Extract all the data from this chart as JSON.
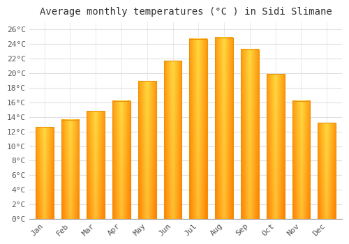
{
  "title": "Average monthly temperatures (°C ) in Sidi Slimane",
  "months": [
    "Jan",
    "Feb",
    "Mar",
    "Apr",
    "May",
    "Jun",
    "Jul",
    "Aug",
    "Sep",
    "Oct",
    "Nov",
    "Dec"
  ],
  "temperatures": [
    12.6,
    13.6,
    14.8,
    16.2,
    18.9,
    21.7,
    24.7,
    24.9,
    23.3,
    19.9,
    16.2,
    13.2
  ],
  "bar_color_center": "#FFD966",
  "bar_color_edge": "#E8920A",
  "bar_color_side": "#F5A623",
  "ylim": [
    0,
    27
  ],
  "yticks": [
    0,
    2,
    4,
    6,
    8,
    10,
    12,
    14,
    16,
    18,
    20,
    22,
    24,
    26
  ],
  "ytick_labels": [
    "0°C",
    "2°C",
    "4°C",
    "6°C",
    "8°C",
    "10°C",
    "12°C",
    "14°C",
    "16°C",
    "18°C",
    "20°C",
    "22°C",
    "24°C",
    "26°C"
  ],
  "title_fontsize": 10,
  "tick_fontsize": 8,
  "background_color": "#ffffff",
  "plot_bg_color": "#ffffff",
  "grid_color": "#e0e0e0",
  "bar_width": 0.7
}
